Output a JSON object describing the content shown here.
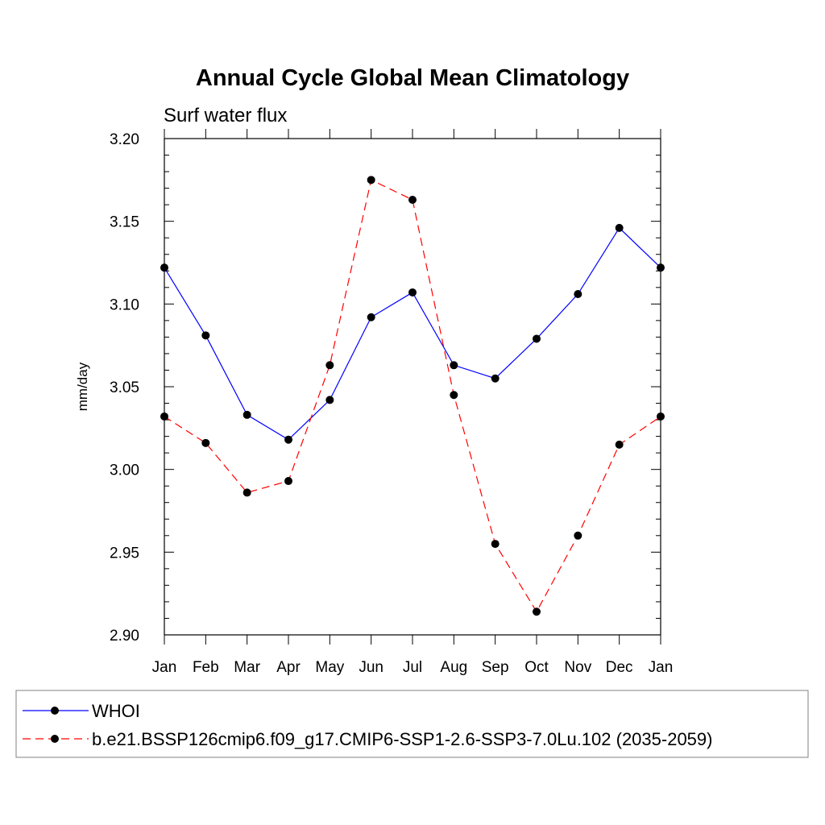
{
  "chart_data": {
    "type": "line",
    "title": "Annual Cycle Global Mean Climatology",
    "subtitle": "Surf water flux",
    "ylabel": "mm/day",
    "xlabel": "",
    "categories": [
      "Jan",
      "Feb",
      "Mar",
      "Apr",
      "May",
      "Jun",
      "Jul",
      "Aug",
      "Sep",
      "Oct",
      "Nov",
      "Dec",
      "Jan"
    ],
    "ylim": [
      2.9,
      3.2
    ],
    "yticks": [
      "2.90",
      "2.95",
      "3.00",
      "3.05",
      "3.10",
      "3.15",
      "3.20"
    ],
    "grid": false,
    "legend_position": "bottom",
    "series": [
      {
        "name": "WHOI",
        "color": "#0000ff",
        "style": "solid",
        "marker": "filled-circle",
        "values": [
          3.122,
          3.081,
          3.033,
          3.018,
          3.042,
          3.092,
          3.107,
          3.063,
          3.055,
          3.079,
          3.106,
          3.146,
          3.122
        ]
      },
      {
        "name": "b.e21.BSSP126cmip6.f09_g17.CMIP6-SSP1-2.6-SSP3-7.0Lu.102 (2035-2059)",
        "color": "#ff0000",
        "style": "dashed",
        "marker": "filled-circle",
        "values": [
          3.032,
          3.016,
          2.986,
          2.993,
          3.063,
          3.175,
          3.163,
          3.045,
          2.955,
          2.914,
          2.96,
          3.015,
          3.032
        ]
      }
    ]
  }
}
